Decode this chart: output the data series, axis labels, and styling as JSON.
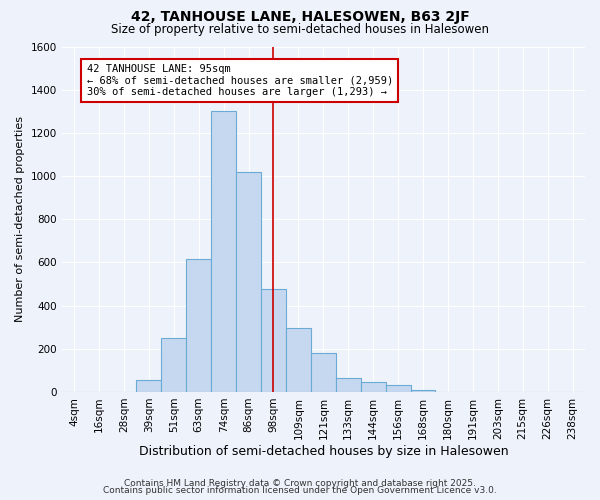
{
  "title": "42, TANHOUSE LANE, HALESOWEN, B63 2JF",
  "subtitle": "Size of property relative to semi-detached houses in Halesowen",
  "xlabel": "Distribution of semi-detached houses by size in Halesowen",
  "ylabel": "Number of semi-detached properties",
  "categories": [
    "4sqm",
    "16sqm",
    "28sqm",
    "39sqm",
    "51sqm",
    "63sqm",
    "74sqm",
    "86sqm",
    "98sqm",
    "109sqm",
    "121sqm",
    "133sqm",
    "144sqm",
    "156sqm",
    "168sqm",
    "180sqm",
    "191sqm",
    "203sqm",
    "215sqm",
    "226sqm",
    "238sqm"
  ],
  "values": [
    0,
    0,
    0,
    55,
    250,
    615,
    1300,
    1020,
    475,
    295,
    180,
    65,
    45,
    30,
    10,
    0,
    0,
    0,
    0,
    0,
    0
  ],
  "bar_color": "#c5d8f0",
  "bar_edge_color": "#6aaad4",
  "vline_x": 8.0,
  "vline_color": "#cc0000",
  "annotation_title": "42 TANHOUSE LANE: 95sqm",
  "annotation_line1": "← 68% of semi-detached houses are smaller (2,959)",
  "annotation_line2": "30% of semi-detached houses are larger (1,293) →",
  "annotation_box_facecolor": "#ffffff",
  "annotation_box_edgecolor": "#cc0000",
  "footer1": "Contains HM Land Registry data © Crown copyright and database right 2025.",
  "footer2": "Contains public sector information licensed under the Open Government Licence v3.0.",
  "background_color": "#eef2fb",
  "grid_color": "#ffffff",
  "ylim": [
    0,
    1600
  ],
  "yticks": [
    0,
    200,
    400,
    600,
    800,
    1000,
    1200,
    1400,
    1600
  ],
  "title_fontsize": 10,
  "subtitle_fontsize": 8.5,
  "ylabel_fontsize": 8,
  "xlabel_fontsize": 9,
  "tick_fontsize": 7.5,
  "footer_fontsize": 6.5
}
